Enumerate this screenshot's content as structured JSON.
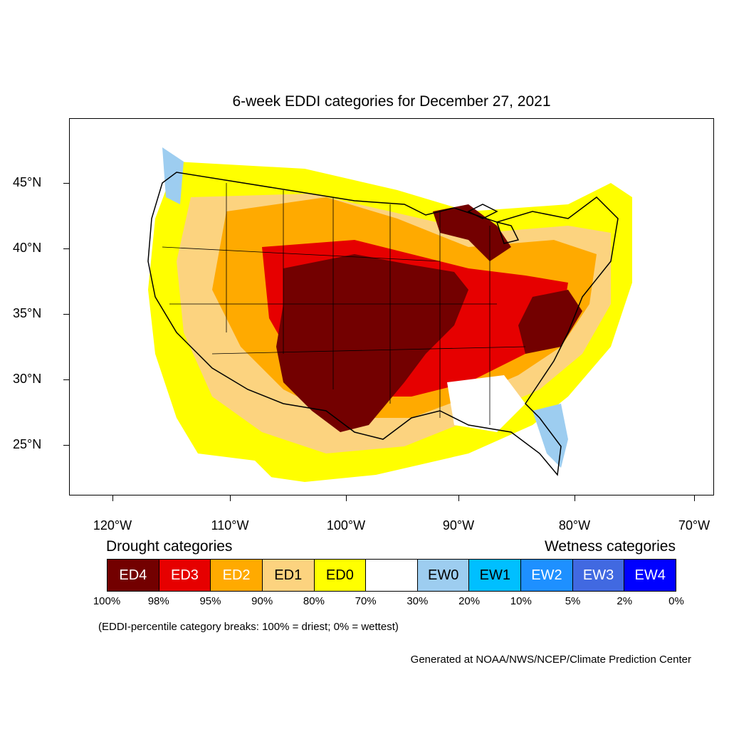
{
  "title": "6-week EDDI categories for December 27, 2021",
  "axes": {
    "lat_ticks": [
      "45°N",
      "40°N",
      "35°N",
      "30°N",
      "25°N"
    ],
    "lon_ticks": [
      "120°W",
      "110°W",
      "100°W",
      "90°W",
      "80°W",
      "70°W"
    ]
  },
  "legend": {
    "drought_title": "Drought categories",
    "wetness_title": "Wetness categories",
    "categories": [
      {
        "label": "ED4",
        "color": "#730000",
        "text_color": "#ffffff"
      },
      {
        "label": "ED3",
        "color": "#e60000",
        "text_color": "#ffffff"
      },
      {
        "label": "ED2",
        "color": "#ffaa00",
        "text_color": "#ffffff"
      },
      {
        "label": "ED1",
        "color": "#fcd37f",
        "text_color": "#000000"
      },
      {
        "label": "ED0",
        "color": "#ffff00",
        "text_color": "#000000"
      },
      {
        "label": "",
        "color": "#ffffff",
        "text_color": "#000000"
      },
      {
        "label": "EW0",
        "color": "#9dcdf0",
        "text_color": "#000000"
      },
      {
        "label": "EW1",
        "color": "#00bfff",
        "text_color": "#000000"
      },
      {
        "label": "EW2",
        "color": "#1e90ff",
        "text_color": "#ffffff"
      },
      {
        "label": "EW3",
        "color": "#4169e1",
        "text_color": "#ffffff"
      },
      {
        "label": "EW4",
        "color": "#0000ff",
        "text_color": "#ffffff"
      }
    ],
    "breaks": [
      "100%",
      "98%",
      "95%",
      "90%",
      "80%",
      "70%",
      "30%",
      "20%",
      "10%",
      "5%",
      "2%",
      "0%"
    ]
  },
  "note": "(EDDI-percentile category breaks: 100% = driest; 0% = wettest)",
  "credit": "Generated at NOAA/NWS/NCEP/Climate Prediction Center"
}
